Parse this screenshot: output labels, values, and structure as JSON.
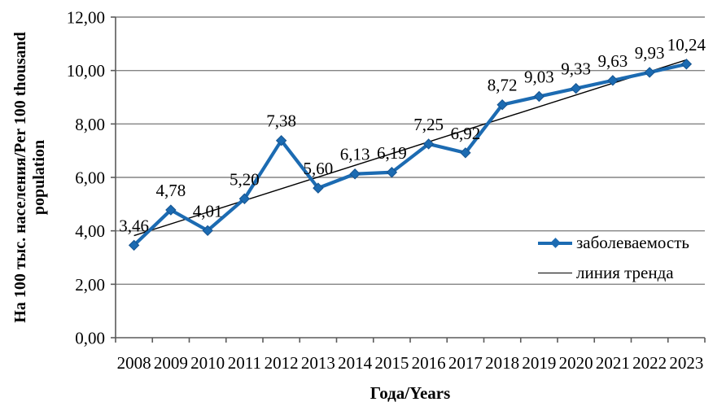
{
  "chart_data": {
    "type": "line",
    "xlabel": "Года/Years",
    "ylabel": "На 100 тыс. населения/Per 100 thousand population",
    "ylabel_lines": [
      "На 100 тыс. населения/Per 100 thousand",
      "population"
    ],
    "categories": [
      "2008",
      "2009",
      "2010",
      "2011",
      "2012",
      "2013",
      "2014",
      "2015",
      "2016",
      "2017",
      "2018",
      "2019",
      "2020",
      "2021",
      "2022",
      "2023"
    ],
    "series": [
      {
        "name": "заболеваемость",
        "values": [
          3.46,
          4.78,
          4.01,
          5.2,
          7.38,
          5.6,
          6.13,
          6.19,
          7.25,
          6.92,
          8.72,
          9.03,
          9.33,
          9.63,
          9.93,
          10.24
        ],
        "labels": [
          "3,46",
          "4,78",
          "4,01",
          "5,20",
          "7,38",
          "5,60",
          "6,13",
          "6,19",
          "7,25",
          "6,92",
          "8,72",
          "9,03",
          "9,33",
          "9,63",
          "9,93",
          "10,24"
        ]
      }
    ],
    "trend": {
      "name": "линия тренда",
      "type": "linear",
      "start_value": 3.82,
      "end_value": 10.4
    },
    "y_ticks": {
      "values": [
        0,
        2,
        4,
        6,
        8,
        10,
        12
      ],
      "labels": [
        "0,00",
        "2,00",
        "4,00",
        "6,00",
        "8,00",
        "10,00",
        "12,00"
      ]
    },
    "ylim": [
      0,
      12
    ],
    "grid": "horizontal",
    "legend": {
      "position": "right-middle",
      "entries": [
        {
          "label": "заболеваемость",
          "marker": "line-with-diamond",
          "color": "#1C6BB2"
        },
        {
          "label": "линия тренда",
          "marker": "thin-line",
          "color": "#000000"
        }
      ]
    },
    "colors": {
      "series": "#1C6BB2",
      "marker_edge": "#15538F",
      "trend": "#000000",
      "gridline": "#848484",
      "axis": "#5A5A5A",
      "text": "#000000",
      "background": "#FFFFFF"
    }
  }
}
